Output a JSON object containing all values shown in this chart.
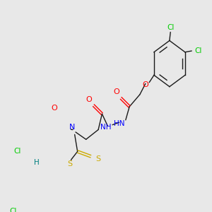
{
  "bg_color": "#e8e8e8",
  "colors": {
    "C": "#000000",
    "N": "#0000ff",
    "O": "#ff0000",
    "S": "#ccaa00",
    "Cl": "#00cc00",
    "H": "#008080",
    "bond": "#1a1a1a"
  },
  "figsize": [
    3.0,
    3.0
  ],
  "dpi": 100
}
